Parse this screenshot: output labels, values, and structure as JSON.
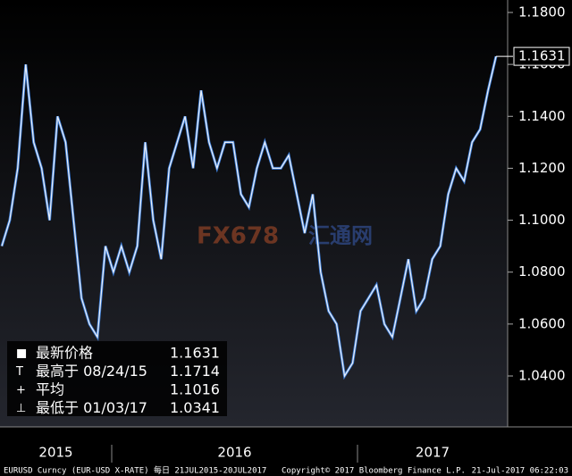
{
  "chart_data": {
    "type": "line",
    "values": [
      1.09,
      1.1,
      1.12,
      1.16,
      1.13,
      1.12,
      1.1,
      1.14,
      1.13,
      1.1,
      1.07,
      1.06,
      1.055,
      1.09,
      1.08,
      1.09,
      1.08,
      1.09,
      1.13,
      1.1,
      1.085,
      1.12,
      1.13,
      1.14,
      1.12,
      1.15,
      1.13,
      1.12,
      1.13,
      1.13,
      1.11,
      1.105,
      1.12,
      1.13,
      1.12,
      1.12,
      1.125,
      1.11,
      1.095,
      1.11,
      1.08,
      1.065,
      1.06,
      1.04,
      1.045,
      1.065,
      1.07,
      1.075,
      1.06,
      1.055,
      1.07,
      1.085,
      1.065,
      1.07,
      1.085,
      1.09,
      1.11,
      1.12,
      1.115,
      1.13,
      1.135,
      1.15,
      1.1631
    ],
    "color": "#e8eef8",
    "ylim": [
      1.0204,
      1.1848
    ],
    "yticks": [
      {
        "value": 1.04,
        "label": "1.0400"
      },
      {
        "value": 1.06,
        "label": "1.0600"
      },
      {
        "value": 1.08,
        "label": "1.0800"
      },
      {
        "value": 1.1,
        "label": "1.1000"
      },
      {
        "value": 1.12,
        "label": "1.1200"
      },
      {
        "value": 1.14,
        "label": "1.1400"
      },
      {
        "value": 1.16,
        "label": "1.1600"
      },
      {
        "value": 1.18,
        "label": "1.1800"
      }
    ],
    "last_price": {
      "value": 1.1631,
      "label": "1.1631"
    },
    "year_labels": [
      "2015",
      "2016",
      "2017"
    ],
    "stats": [
      {
        "label": "最新价格",
        "value": 1.1631
      },
      {
        "label": "最高于 08/24/15",
        "value": 1.1714
      },
      {
        "label": "平均",
        "value": 1.1016
      },
      {
        "label": "最低于 01/03/17",
        "value": 1.0341
      }
    ],
    "footer": {
      "left": "EURUSD Curncy (EUR-USD X-RATE)  每日 21JUL2015-20JUL2017",
      "center": "Copyright© 2017 Bloomberg Finance L.P.",
      "right": "21-Jul-2017 06:22:03"
    },
    "watermark": [
      "FX678",
      "汇通网"
    ]
  }
}
